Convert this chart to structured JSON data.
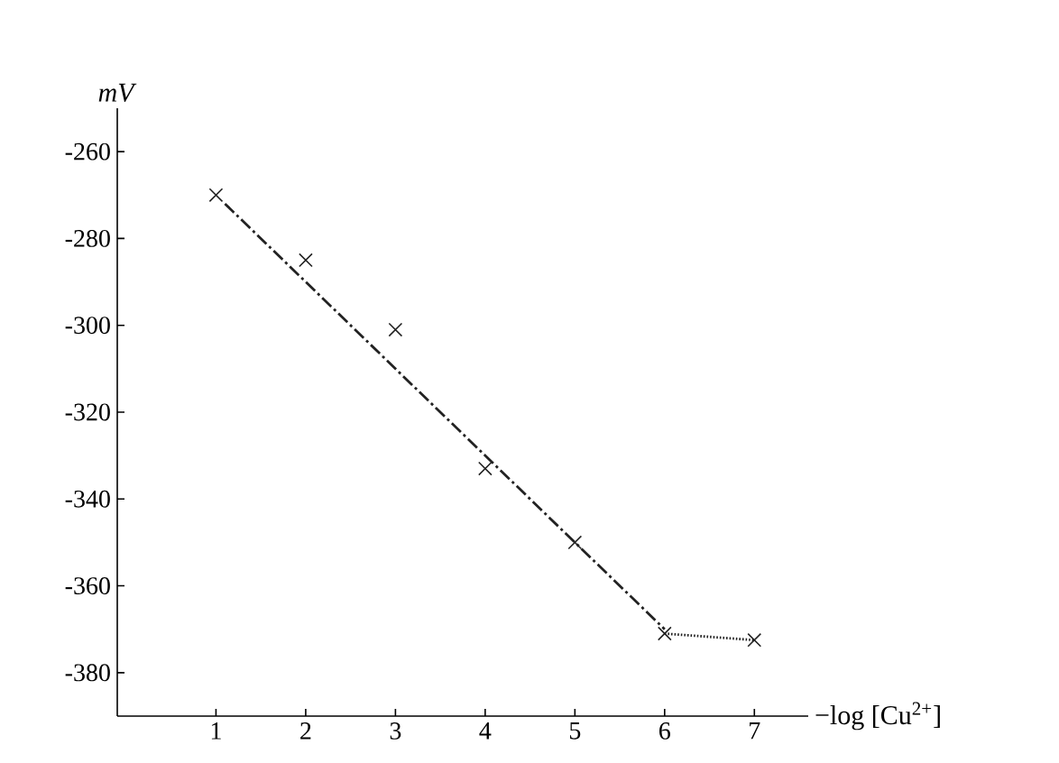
{
  "chart_data": {
    "type": "scatter",
    "xlabel": "−log [Cu$^{2+}$]",
    "ylabel": "*mV*",
    "marker": "cross",
    "xlim": [
      -0.1,
      7.6
    ],
    "ylim": [
      -390,
      -250
    ],
    "xticks": [
      1,
      2,
      3,
      4,
      5,
      6,
      7
    ],
    "yticks": [
      -380,
      -360,
      -340,
      -320,
      -300,
      -280,
      -260
    ],
    "series": [
      {
        "color": "#222222",
        "x": [
          1,
          2,
          3,
          4,
          5,
          6,
          7
        ],
        "values": [
          -270,
          -285,
          -301,
          -333,
          -350,
          -371,
          -372.5
        ]
      },
      {
        "type": "line",
        "color": "#222222",
        "line_style": "dashed",
        "marker": "none",
        "x": [
          1.1,
          6
        ],
        "values": [
          -272,
          -370
        ]
      },
      {
        "type": "line",
        "color": "#222222",
        "line_style": "dotted",
        "marker": "none",
        "x": [
          6,
          7
        ],
        "values": [
          -371,
          -372.5
        ]
      }
    ]
  }
}
